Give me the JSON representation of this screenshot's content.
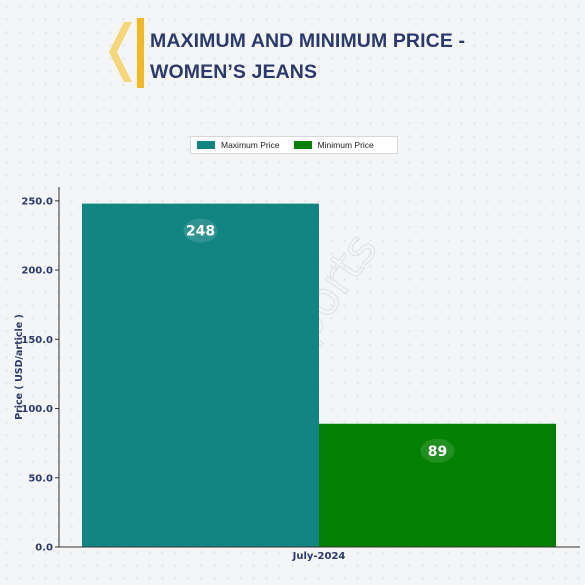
{
  "title": {
    "line1": "MAXIMUM AND MINIMUM PRICE -",
    "line2": "WOMEN’S JEANS"
  },
  "colors": {
    "title": "#2b3a6e",
    "accent_logo": "#f5b820",
    "max_series": "#128582",
    "min_series": "#048004"
  },
  "legend": {
    "max_label": "Maximum Price",
    "min_label": "Minimum Price",
    "placement": "top-center"
  },
  "watermark": "DNJ Reports",
  "chart_data": {
    "type": "bar",
    "categories": [
      "July-2024"
    ],
    "series": [
      {
        "name": "Maximum Price",
        "values": [
          248
        ],
        "color": "#128582"
      },
      {
        "name": "Minimum Price",
        "values": [
          89
        ],
        "color": "#048004"
      }
    ],
    "data_labels": [
      "248",
      "89"
    ],
    "ylabel": "Price ( USD/article )",
    "xlabel": "",
    "ylim": [
      0,
      260
    ],
    "yticks": [
      0,
      50,
      100,
      150,
      200,
      250
    ],
    "ytick_labels": [
      "0.0",
      "50.0",
      "100.0",
      "150.0",
      "200.0",
      "250.0"
    ],
    "grid": false
  }
}
